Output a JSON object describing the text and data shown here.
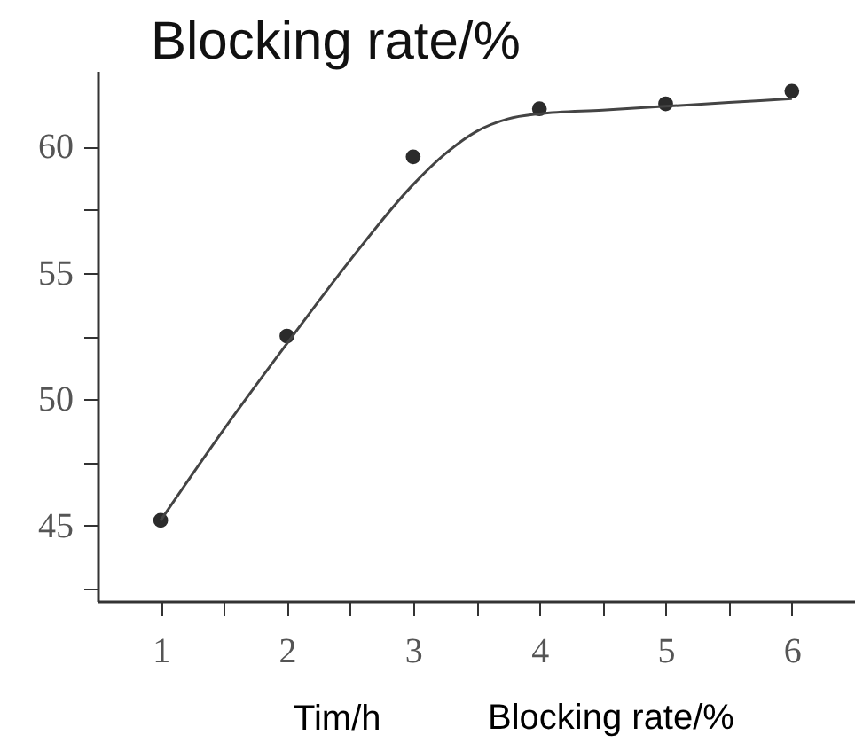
{
  "chart_data": {
    "type": "scatter",
    "title": "Blocking rate/%",
    "xlabel": "Tim/h",
    "annotations": [
      "Blocking rate/%"
    ],
    "x": [
      1,
      2,
      3,
      4,
      5,
      6
    ],
    "series": [
      {
        "marker": "circle",
        "color": "#2b2b2b",
        "values": [
          45.2,
          52.5,
          59.6,
          61.5,
          61.7,
          62.2
        ]
      },
      {
        "type": "line",
        "line_style": "solid",
        "marker": "none",
        "color": "#444444",
        "x": [
          1,
          1.5,
          2,
          2.5,
          3,
          3.25,
          3.5,
          3.75,
          4,
          4.5,
          5,
          5.5,
          6
        ],
        "values": [
          45.2,
          48.8,
          52.2,
          55.5,
          58.5,
          59.7,
          60.6,
          61.1,
          61.3,
          61.45,
          61.6,
          61.75,
          61.9
        ]
      }
    ],
    "xlim": [
      0.5,
      6.5
    ],
    "ylim": [
      42,
      63
    ],
    "xticks": [
      1,
      {
        "value": 1.5,
        "label": null
      },
      2,
      {
        "value": 2.5,
        "label": null
      },
      3,
      {
        "value": 3.5,
        "label": null
      },
      4,
      {
        "value": 4.5,
        "label": null
      },
      5,
      {
        "value": 5.5,
        "label": null
      },
      6
    ],
    "yticks": [
      {
        "value": 42.5,
        "label": null
      },
      45,
      {
        "value": 47.5,
        "label": null
      },
      50,
      {
        "value": 52.5,
        "label": null
      },
      55,
      {
        "value": 57.5,
        "label": null
      },
      60
    ],
    "grid": false
  }
}
